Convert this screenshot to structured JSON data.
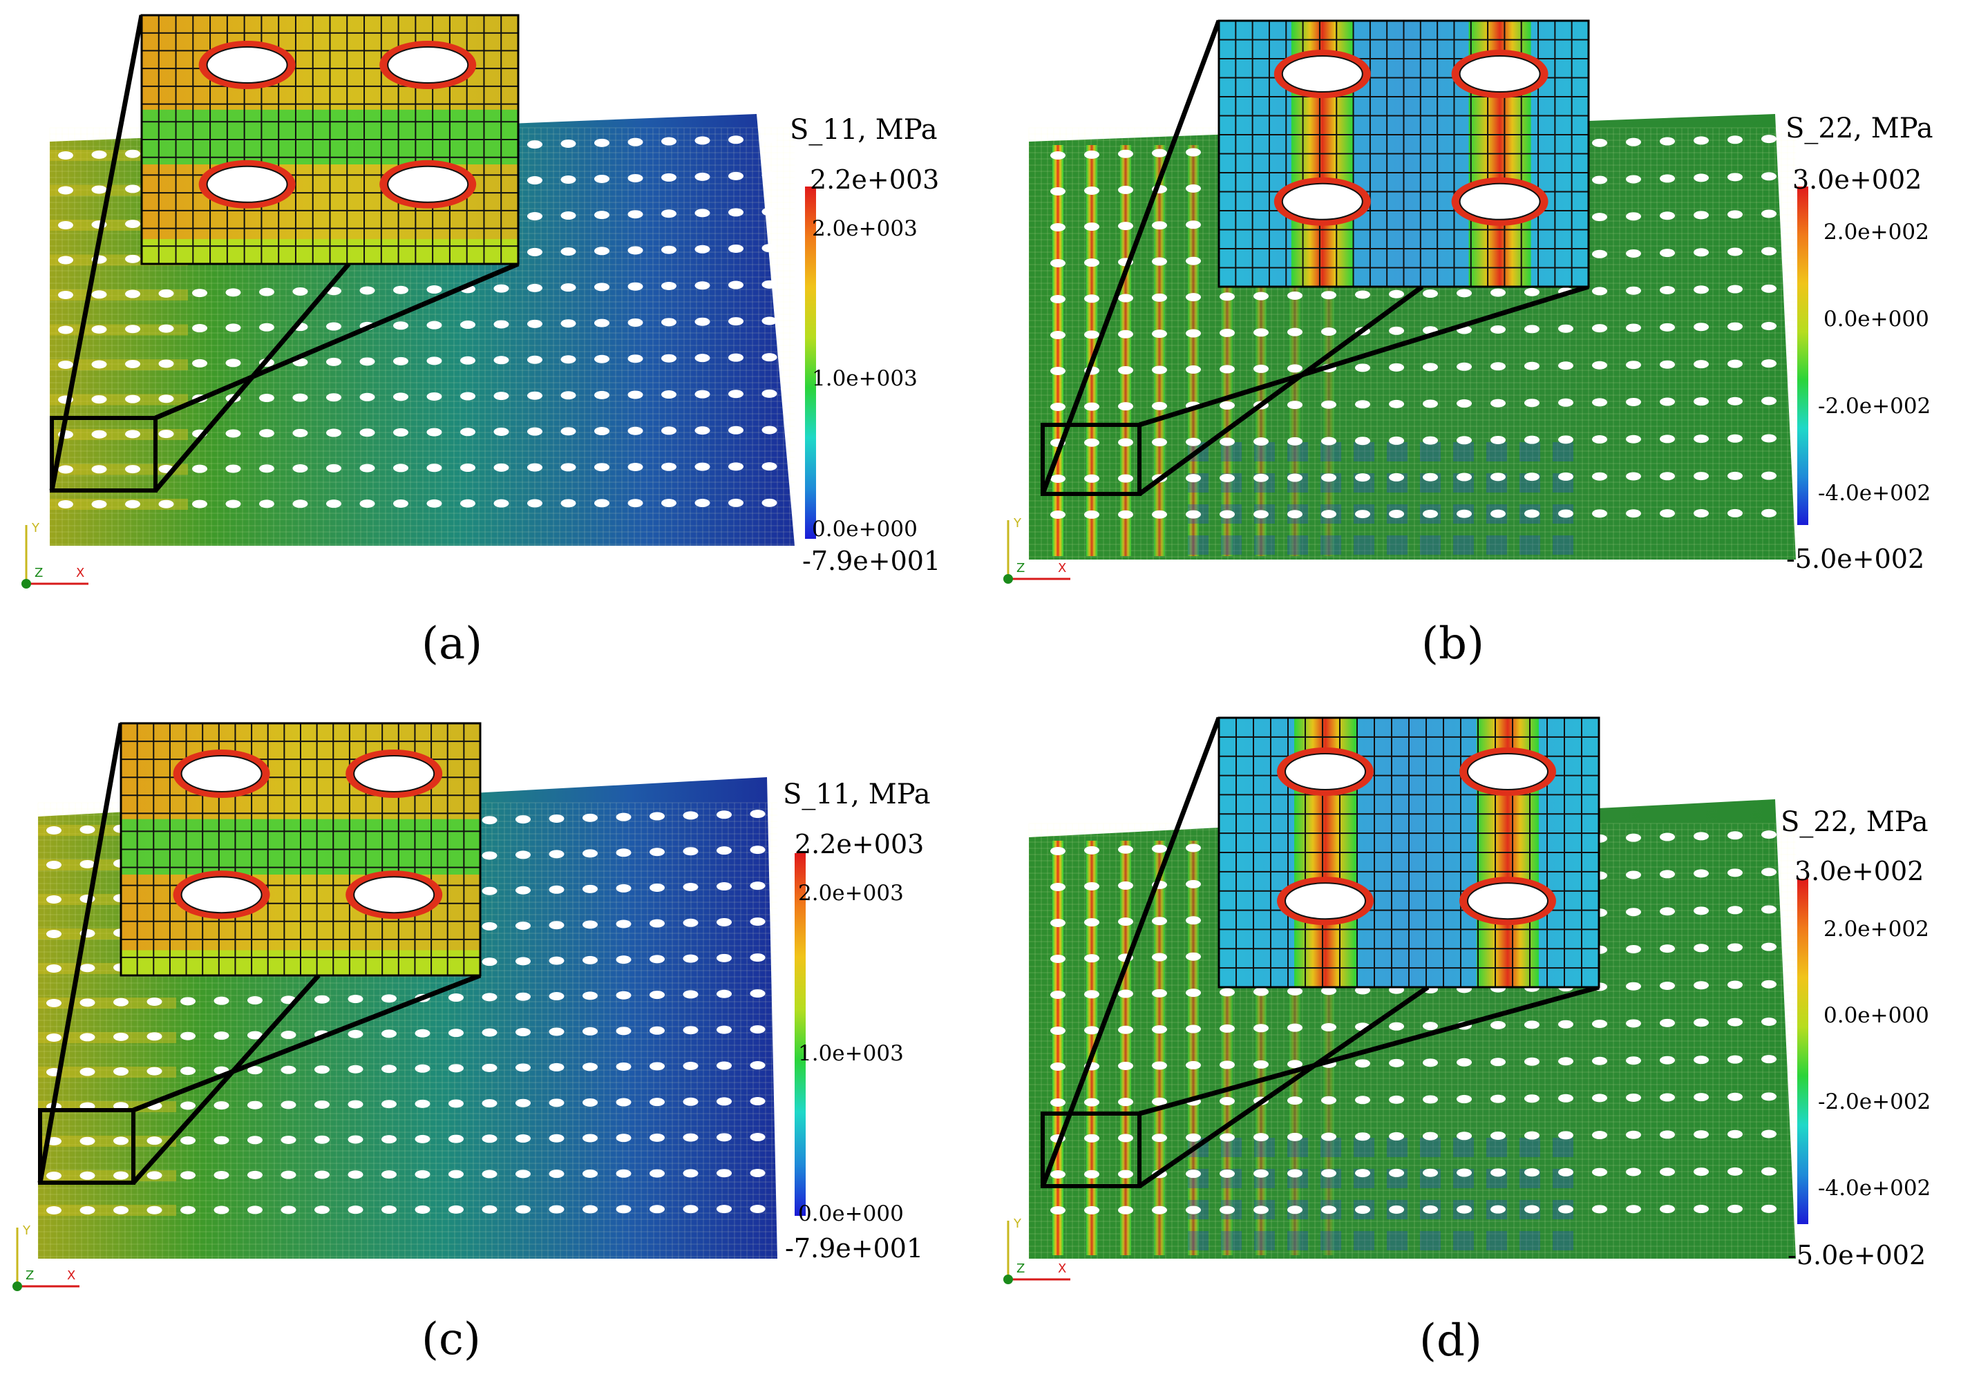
{
  "panels": [
    {
      "id": "a",
      "caption": "(a)",
      "variant": "s11",
      "colorbar": {
        "title": "S_11, MPa",
        "max": "2.2e+003",
        "min": "-7.9e+001",
        "ticks": [
          "2.0e+003",
          "1.0e+003",
          "0.0e+000"
        ]
      },
      "axes": {
        "y": "Y",
        "z": "Z",
        "x": "X"
      }
    },
    {
      "id": "b",
      "caption": "(b)",
      "variant": "s22",
      "colorbar": {
        "title": "S_22, MPa",
        "max": "3.0e+002",
        "min": "-5.0e+002",
        "ticks": [
          "2.0e+002",
          "0.0e+000",
          "-2.0e+002",
          "-4.0e+002"
        ]
      },
      "axes": {
        "y": "Y",
        "z": "Z",
        "x": "X"
      }
    },
    {
      "id": "c",
      "caption": "(c)",
      "variant": "s11",
      "colorbar": {
        "title": "S_11, MPa",
        "max": "2.2e+003",
        "min": "-7.9e+001",
        "ticks": [
          "2.0e+003",
          "1.0e+003",
          "0.0e+000"
        ]
      },
      "axes": {
        "y": "Y",
        "z": "Z",
        "x": "X"
      }
    },
    {
      "id": "d",
      "caption": "(d)",
      "variant": "s22",
      "colorbar": {
        "title": "S_22, MPa",
        "max": "3.0e+002",
        "min": "-5.0e+002",
        "ticks": [
          "2.0e+002",
          "0.0e+000",
          "-2.0e+002",
          "-4.0e+002"
        ]
      },
      "axes": {
        "y": "Y",
        "z": "Z",
        "x": "X"
      }
    }
  ],
  "colors": {
    "rainbow": [
      "#1a1ad6",
      "#1f8bd8",
      "#1fd8c8",
      "#2bd43a",
      "#b6dd1f",
      "#f0c419",
      "#f07a19",
      "#e01a1a"
    ],
    "mesh_green": "#2e8b2e",
    "mesh_blue": "#2450a0"
  }
}
